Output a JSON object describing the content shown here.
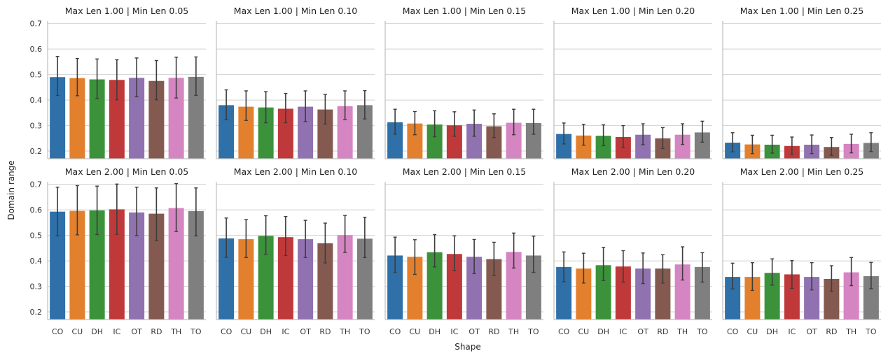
{
  "figure": {
    "ylabel": "Domain range",
    "xlabel": "Shape"
  },
  "chart_data": [
    {
      "type": "bar",
      "title": "Max Len 1.00 | Min Len 0.05",
      "categories": [
        "CO",
        "CU",
        "DH",
        "IC",
        "OT",
        "RD",
        "TH",
        "TO"
      ],
      "values": [
        0.49,
        0.486,
        0.481,
        0.479,
        0.487,
        0.475,
        0.487,
        0.491
      ],
      "err_low": [
        0.418,
        0.417,
        0.405,
        0.401,
        0.413,
        0.401,
        0.408,
        0.418
      ],
      "err_high": [
        0.571,
        0.563,
        0.561,
        0.558,
        0.565,
        0.555,
        0.568,
        0.569
      ],
      "ylim": [
        0.17,
        0.71
      ],
      "yticks": [
        "0.2",
        "0.3",
        "0.4",
        "0.5",
        "0.6",
        "0.7"
      ],
      "grid": true
    },
    {
      "type": "bar",
      "title": "Max Len 1.00 | Min Len 0.10",
      "categories": [
        "CO",
        "CU",
        "DH",
        "IC",
        "OT",
        "RD",
        "TH",
        "TO"
      ],
      "values": [
        0.38,
        0.374,
        0.371,
        0.366,
        0.374,
        0.363,
        0.376,
        0.38
      ],
      "err_low": [
        0.323,
        0.32,
        0.311,
        0.311,
        0.316,
        0.306,
        0.324,
        0.326
      ],
      "err_high": [
        0.44,
        0.436,
        0.433,
        0.426,
        0.436,
        0.422,
        0.436,
        0.437
      ],
      "ylim": [
        0.17,
        0.71
      ],
      "yticks": [
        "0.2",
        "0.3",
        "0.4",
        "0.5",
        "0.6",
        "0.7"
      ],
      "grid": true
    },
    {
      "type": "bar",
      "title": "Max Len 1.00 | Min Len 0.15",
      "categories": [
        "CO",
        "CU",
        "DH",
        "IC",
        "OT",
        "RD",
        "TH",
        "TO"
      ],
      "values": [
        0.313,
        0.308,
        0.304,
        0.301,
        0.307,
        0.297,
        0.311,
        0.31
      ],
      "err_low": [
        0.266,
        0.264,
        0.256,
        0.258,
        0.258,
        0.253,
        0.264,
        0.266
      ],
      "err_high": [
        0.364,
        0.355,
        0.358,
        0.354,
        0.361,
        0.346,
        0.364,
        0.364
      ],
      "ylim": [
        0.17,
        0.71
      ],
      "yticks": [
        "0.2",
        "0.3",
        "0.4",
        "0.5",
        "0.6",
        "0.7"
      ],
      "grid": true
    },
    {
      "type": "bar",
      "title": "Max Len 1.00 | Min Len 0.20",
      "categories": [
        "CO",
        "CU",
        "DH",
        "IC",
        "OT",
        "RD",
        "TH",
        "TO"
      ],
      "values": [
        0.267,
        0.261,
        0.26,
        0.255,
        0.264,
        0.25,
        0.264,
        0.273
      ],
      "err_low": [
        0.228,
        0.223,
        0.221,
        0.214,
        0.225,
        0.21,
        0.226,
        0.235
      ],
      "err_high": [
        0.31,
        0.305,
        0.303,
        0.3,
        0.307,
        0.292,
        0.307,
        0.317
      ],
      "ylim": [
        0.17,
        0.71
      ],
      "yticks": [
        "0.2",
        "0.3",
        "0.4",
        "0.5",
        "0.6",
        "0.7"
      ],
      "grid": true
    },
    {
      "type": "bar",
      "title": "Max Len 1.00 | Min Len 0.25",
      "categories": [
        "CO",
        "CU",
        "DH",
        "IC",
        "OT",
        "RD",
        "TH",
        "TO"
      ],
      "values": [
        0.233,
        0.226,
        0.225,
        0.22,
        0.225,
        0.216,
        0.228,
        0.232
      ],
      "err_low": [
        0.197,
        0.19,
        0.192,
        0.187,
        0.19,
        0.183,
        0.193,
        0.198
      ],
      "err_high": [
        0.272,
        0.262,
        0.262,
        0.255,
        0.263,
        0.253,
        0.266,
        0.272
      ],
      "ylim": [
        0.17,
        0.71
      ],
      "yticks": [
        "0.2",
        "0.3",
        "0.4",
        "0.5",
        "0.6",
        "0.7"
      ],
      "grid": true
    },
    {
      "type": "bar",
      "title": "Max Len 2.00 | Min Len 0.05",
      "categories": [
        "CO",
        "CU",
        "DH",
        "IC",
        "OT",
        "RD",
        "TH",
        "TO"
      ],
      "values": [
        0.593,
        0.596,
        0.598,
        0.602,
        0.59,
        0.585,
        0.607,
        0.595
      ],
      "err_low": [
        0.498,
        0.502,
        0.503,
        0.504,
        0.499,
        0.48,
        0.515,
        0.498
      ],
      "err_high": [
        0.689,
        0.695,
        0.693,
        0.701,
        0.689,
        0.686,
        0.703,
        0.686
      ],
      "ylim": [
        0.17,
        0.71
      ],
      "yticks": [
        "0.2",
        "0.3",
        "0.4",
        "0.5",
        "0.6",
        "0.7"
      ],
      "grid": true
    },
    {
      "type": "bar",
      "title": "Max Len 2.00 | Min Len 0.10",
      "categories": [
        "CO",
        "CU",
        "DH",
        "IC",
        "OT",
        "RD",
        "TH",
        "TO"
      ],
      "values": [
        0.488,
        0.485,
        0.498,
        0.493,
        0.485,
        0.469,
        0.501,
        0.487
      ],
      "err_low": [
        0.414,
        0.413,
        0.426,
        0.421,
        0.413,
        0.392,
        0.433,
        0.413
      ],
      "err_high": [
        0.568,
        0.562,
        0.577,
        0.574,
        0.559,
        0.548,
        0.578,
        0.571
      ],
      "ylim": [
        0.17,
        0.71
      ],
      "yticks": [
        "0.2",
        "0.3",
        "0.4",
        "0.5",
        "0.6",
        "0.7"
      ],
      "grid": true
    },
    {
      "type": "bar",
      "title": "Max Len 2.00 | Min Len 0.15",
      "categories": [
        "CO",
        "CU",
        "DH",
        "IC",
        "OT",
        "RD",
        "TH",
        "TO"
      ],
      "values": [
        0.421,
        0.416,
        0.434,
        0.427,
        0.416,
        0.407,
        0.435,
        0.421
      ],
      "err_low": [
        0.355,
        0.347,
        0.376,
        0.362,
        0.35,
        0.343,
        0.372,
        0.355
      ],
      "err_high": [
        0.493,
        0.483,
        0.503,
        0.498,
        0.484,
        0.473,
        0.509,
        0.497
      ],
      "ylim": [
        0.17,
        0.71
      ],
      "yticks": [
        "0.2",
        "0.3",
        "0.4",
        "0.5",
        "0.6",
        "0.7"
      ],
      "grid": true
    },
    {
      "type": "bar",
      "title": "Max Len 2.00 | Min Len 0.20",
      "categories": [
        "CO",
        "CU",
        "DH",
        "IC",
        "OT",
        "RD",
        "TH",
        "TO"
      ],
      "values": [
        0.376,
        0.37,
        0.383,
        0.378,
        0.37,
        0.37,
        0.386,
        0.376
      ],
      "err_low": [
        0.318,
        0.313,
        0.323,
        0.317,
        0.311,
        0.313,
        0.325,
        0.317
      ],
      "err_high": [
        0.435,
        0.43,
        0.453,
        0.44,
        0.431,
        0.424,
        0.455,
        0.432
      ],
      "ylim": [
        0.17,
        0.71
      ],
      "yticks": [
        "0.2",
        "0.3",
        "0.4",
        "0.5",
        "0.6",
        "0.7"
      ],
      "grid": true
    },
    {
      "type": "bar",
      "title": "Max Len 2.00 | Min Len 0.25",
      "categories": [
        "CO",
        "CU",
        "DH",
        "IC",
        "OT",
        "RD",
        "TH",
        "TO"
      ],
      "values": [
        0.337,
        0.337,
        0.353,
        0.347,
        0.337,
        0.329,
        0.355,
        0.34
      ],
      "err_low": [
        0.29,
        0.284,
        0.305,
        0.292,
        0.286,
        0.281,
        0.303,
        0.291
      ],
      "err_high": [
        0.391,
        0.393,
        0.408,
        0.401,
        0.393,
        0.381,
        0.413,
        0.394
      ],
      "ylim": [
        0.17,
        0.71
      ],
      "yticks": [
        "0.2",
        "0.3",
        "0.4",
        "0.5",
        "0.6",
        "0.7"
      ],
      "grid": true
    }
  ],
  "palette": [
    "#2f70a9",
    "#e3802e",
    "#3b923b",
    "#c0393a",
    "#9172b0",
    "#845a50",
    "#d585c2",
    "#7f7f7f"
  ]
}
